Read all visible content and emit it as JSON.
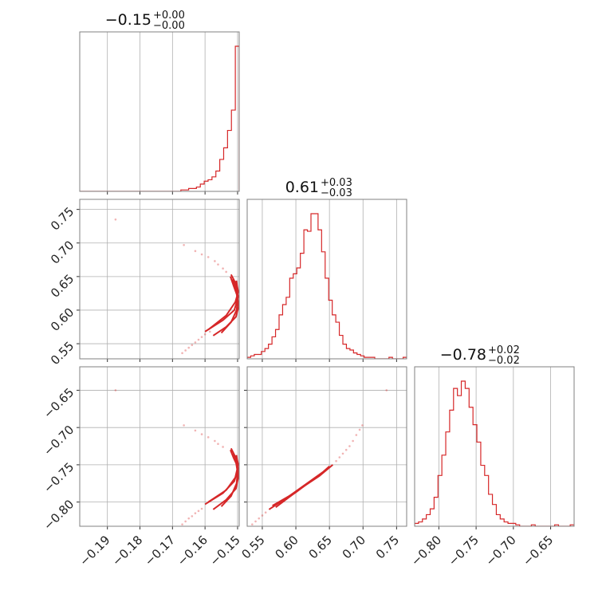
{
  "colors": {
    "series": "#d62728",
    "grid": "#b0b0b0",
    "frame": "#808080"
  },
  "chart_data": {
    "type": "corner",
    "parameters": [
      {
        "title": {
          "median": "−0.15",
          "plus": "+0.00",
          "minus": "−0.00"
        },
        "range": [
          -0.1985,
          -0.1495
        ],
        "ticks": [
          -0.19,
          -0.18,
          -0.17,
          -0.16,
          -0.15
        ],
        "tick_labels": [
          "−0.19",
          "−0.18",
          "−0.17",
          "−0.16",
          "−0.15"
        ]
      },
      {
        "title": {
          "median": "0.61",
          "plus": "+0.03",
          "minus": "−0.03"
        },
        "range": [
          0.5275,
          0.765
        ],
        "ticks": [
          0.55,
          0.6,
          0.65,
          0.7,
          0.75
        ],
        "tick_labels": [
          "0.55",
          "0.60",
          "0.65",
          "0.70",
          "0.75"
        ]
      },
      {
        "title": {
          "median": "−0.78",
          "plus": "+0.02",
          "minus": "−0.02"
        },
        "range": [
          -0.8325,
          -0.6185
        ],
        "ticks": [
          -0.8,
          -0.75,
          -0.7,
          -0.65
        ],
        "tick_labels": [
          "−0.80",
          "−0.75",
          "−0.70",
          "−0.65"
        ]
      }
    ],
    "histograms": [
      {
        "bin_edges": [
          -0.1985,
          -0.1495
        ],
        "counts": [
          0,
          0,
          0,
          0,
          0,
          0,
          0,
          0,
          0,
          0,
          0,
          0,
          0,
          0,
          0,
          0,
          0,
          0,
          0,
          0,
          0,
          0,
          0,
          0,
          0,
          0,
          1,
          1,
          2,
          2,
          3,
          5,
          7,
          8,
          10,
          14,
          22,
          30,
          42,
          56,
          100
        ]
      },
      {
        "bin_edges": [
          0.5275,
          0.765
        ],
        "counts": [
          1,
          2,
          3,
          3,
          5,
          7,
          10,
          15,
          20,
          30,
          37,
          42,
          55,
          58,
          62,
          72,
          88,
          87,
          99,
          99,
          88,
          73,
          55,
          40,
          30,
          25,
          16,
          10,
          7,
          6,
          4,
          3,
          2,
          1,
          1,
          1,
          0,
          0,
          0,
          0,
          1,
          0,
          0,
          0,
          1
        ]
      },
      {
        "bin_edges": [
          -0.8325,
          -0.6185
        ],
        "counts": [
          2,
          3,
          5,
          8,
          12,
          20,
          35,
          49,
          65,
          80,
          95,
          90,
          100,
          95,
          82,
          70,
          58,
          42,
          35,
          22,
          15,
          8,
          5,
          3,
          2,
          2,
          1,
          0,
          0,
          0,
          1,
          0,
          0,
          0,
          0,
          0,
          1,
          0,
          0,
          0,
          1
        ]
      }
    ],
    "pairs": [
      {
        "x_param": 0,
        "y_param": 1,
        "contours": [
          [
            [
              -0.1575,
              0.562
            ],
            [
              -0.1535,
              0.575
            ],
            [
              -0.1505,
              0.59
            ],
            [
              -0.1497,
              0.605
            ],
            [
              -0.15,
              0.62
            ],
            [
              -0.1512,
              0.636
            ],
            [
              -0.1522,
              0.65
            ]
          ],
          [
            [
              -0.155,
              0.566
            ],
            [
              -0.152,
              0.582
            ],
            [
              -0.1503,
              0.6
            ],
            [
              -0.15,
              0.615
            ],
            [
              -0.1505,
              0.632
            ],
            [
              -0.1515,
              0.646
            ]
          ],
          [
            [
              -0.16,
              0.568
            ],
            [
              -0.1545,
              0.585
            ],
            [
              -0.151,
              0.6
            ],
            [
              -0.1498,
              0.62
            ],
            [
              -0.1506,
              0.64
            ],
            [
              -0.152,
              0.653
            ]
          ],
          [
            [
              -0.159,
              0.571
            ],
            [
              -0.1535,
              0.592
            ],
            [
              -0.1507,
              0.612
            ],
            [
              -0.1498,
              0.627
            ],
            [
              -0.1504,
              0.644
            ]
          ]
        ],
        "points": [
          [
            -0.1875,
            0.735
          ],
          [
            -0.1665,
            0.697
          ],
          [
            -0.163,
            0.688
          ],
          [
            -0.161,
            0.683
          ],
          [
            -0.159,
            0.679
          ],
          [
            -0.157,
            0.673
          ],
          [
            -0.156,
            0.668
          ],
          [
            -0.1545,
            0.662
          ],
          [
            -0.1535,
            0.657
          ],
          [
            -0.167,
            0.536
          ],
          [
            -0.166,
            0.54
          ],
          [
            -0.165,
            0.544
          ],
          [
            -0.164,
            0.548
          ],
          [
            -0.163,
            0.552
          ],
          [
            -0.162,
            0.556
          ],
          [
            -0.161,
            0.56
          ],
          [
            -0.16,
            0.564
          ],
          [
            -0.1585,
            0.568
          ]
        ]
      },
      {
        "x_param": 0,
        "y_param": 2,
        "contours": [
          [
            [
              -0.1575,
              -0.81
            ],
            [
              -0.1535,
              -0.797
            ],
            [
              -0.1505,
              -0.782
            ],
            [
              -0.1497,
              -0.765
            ],
            [
              -0.15,
              -0.752
            ],
            [
              -0.1512,
              -0.741
            ],
            [
              -0.1522,
              -0.73
            ]
          ],
          [
            [
              -0.155,
              -0.806
            ],
            [
              -0.152,
              -0.792
            ],
            [
              -0.1503,
              -0.775
            ],
            [
              -0.15,
              -0.76
            ],
            [
              -0.1505,
              -0.746
            ],
            [
              -0.1515,
              -0.735
            ]
          ],
          [
            [
              -0.16,
              -0.803
            ],
            [
              -0.1545,
              -0.788
            ],
            [
              -0.151,
              -0.772
            ],
            [
              -0.1498,
              -0.755
            ],
            [
              -0.1506,
              -0.74
            ],
            [
              -0.152,
              -0.728
            ]
          ],
          [
            [
              -0.159,
              -0.8
            ],
            [
              -0.1535,
              -0.784
            ],
            [
              -0.1507,
              -0.767
            ],
            [
              -0.1498,
              -0.75
            ],
            [
              -0.1504,
              -0.737
            ]
          ]
        ],
        "points": [
          [
            -0.1875,
            -0.65
          ],
          [
            -0.1665,
            -0.697
          ],
          [
            -0.163,
            -0.704
          ],
          [
            -0.161,
            -0.709
          ],
          [
            -0.159,
            -0.713
          ],
          [
            -0.157,
            -0.718
          ],
          [
            -0.156,
            -0.722
          ],
          [
            -0.1545,
            -0.726
          ],
          [
            -0.167,
            -0.83
          ],
          [
            -0.166,
            -0.826
          ],
          [
            -0.165,
            -0.822
          ],
          [
            -0.164,
            -0.819
          ],
          [
            -0.163,
            -0.815
          ],
          [
            -0.162,
            -0.812
          ],
          [
            -0.161,
            -0.809
          ]
        ]
      },
      {
        "x_param": 1,
        "y_param": 2,
        "contours": [
          [
            [
              0.56,
              -0.81
            ],
            [
              0.585,
              -0.795
            ],
            [
              0.61,
              -0.78
            ],
            [
              0.635,
              -0.765
            ],
            [
              0.655,
              -0.75
            ]
          ],
          [
            [
              0.565,
              -0.805
            ],
            [
              0.59,
              -0.792
            ],
            [
              0.615,
              -0.776
            ],
            [
              0.64,
              -0.76
            ],
            [
              0.65,
              -0.752
            ]
          ],
          [
            [
              0.57,
              -0.807
            ],
            [
              0.595,
              -0.79
            ],
            [
              0.62,
              -0.773
            ],
            [
              0.645,
              -0.757
            ]
          ],
          [
            [
              0.575,
              -0.802
            ],
            [
              0.6,
              -0.787
            ],
            [
              0.625,
              -0.77
            ],
            [
              0.648,
              -0.755
            ]
          ]
        ],
        "points": [
          [
            0.535,
            -0.83
          ],
          [
            0.54,
            -0.826
          ],
          [
            0.545,
            -0.822
          ],
          [
            0.55,
            -0.818
          ],
          [
            0.555,
            -0.814
          ],
          [
            0.66,
            -0.745
          ],
          [
            0.665,
            -0.74
          ],
          [
            0.67,
            -0.735
          ],
          [
            0.675,
            -0.73
          ],
          [
            0.68,
            -0.725
          ],
          [
            0.685,
            -0.718
          ],
          [
            0.69,
            -0.71
          ],
          [
            0.695,
            -0.703
          ],
          [
            0.699,
            -0.697
          ],
          [
            0.735,
            -0.65
          ]
        ]
      }
    ]
  }
}
